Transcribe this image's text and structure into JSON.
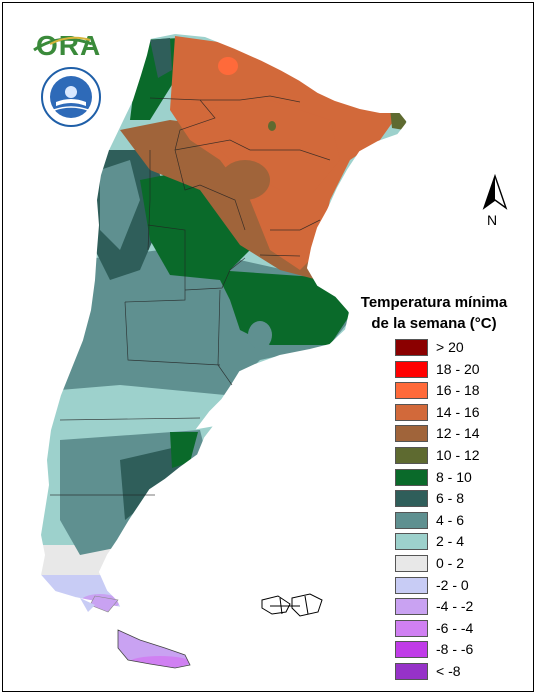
{
  "logo": {
    "text": "ORA"
  },
  "emblem": {
    "icon": "smn-emblem-icon"
  },
  "north_arrow": {
    "label": "N",
    "icon": "north-arrow-icon"
  },
  "legend": {
    "title_line1": "Temperatura mínima",
    "title_line2": "de la semana (°C)",
    "items": [
      {
        "label": "> 20",
        "color": "#8b0000"
      },
      {
        "label": "18 - 20",
        "color": "#ff0000"
      },
      {
        "label": "16 - 18",
        "color": "#ff6a3a"
      },
      {
        "label": "14 - 16",
        "color": "#d2693a"
      },
      {
        "label": "12 - 14",
        "color": "#a0643a"
      },
      {
        "label": "10 - 12",
        "color": "#5e6a30"
      },
      {
        "label": "8 - 10",
        "color": "#0a6a2a"
      },
      {
        "label": "6 - 8",
        "color": "#2f5e5a"
      },
      {
        "label": "4 - 6",
        "color": "#5f9090"
      },
      {
        "label": "2 - 4",
        "color": "#9dd1cc"
      },
      {
        "label": "0 - 2",
        "color": "#e8e8e8"
      },
      {
        "label": "-2 - 0",
        "color": "#c8ccf5"
      },
      {
        "label": "-4 - -2",
        "color": "#c9a2f2"
      },
      {
        "label": "-6 - -4",
        "color": "#d080f2"
      },
      {
        "label": "-8 - -6",
        "color": "#c03ce8"
      },
      {
        "label": "< -8",
        "color": "#9632c8"
      }
    ]
  }
}
